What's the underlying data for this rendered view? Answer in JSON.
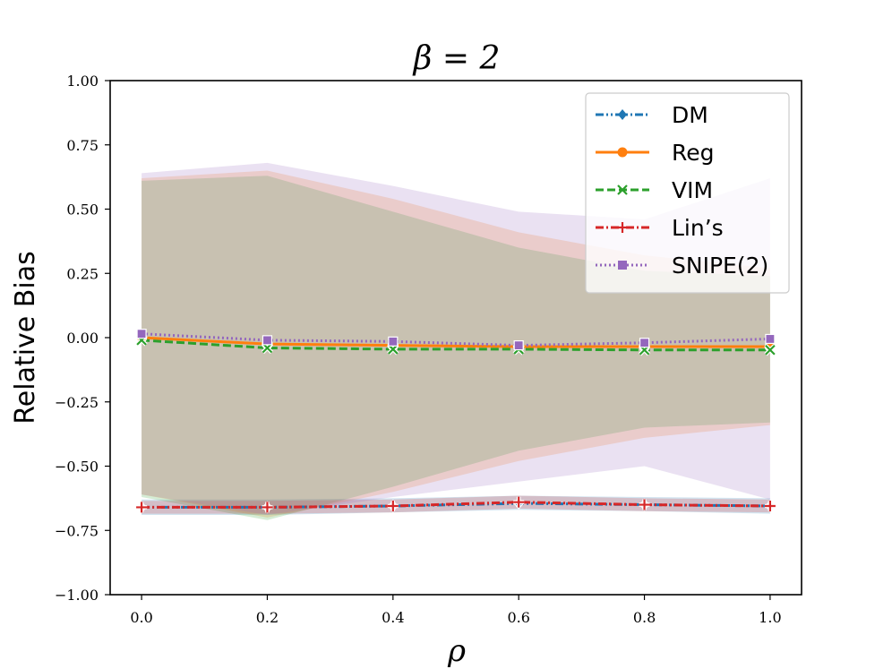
{
  "chart_data": {
    "type": "line",
    "title": "β = 2",
    "xlabel": "ρ",
    "ylabel": "Relative Bias",
    "x": [
      0.0,
      0.2,
      0.4,
      0.6,
      0.8,
      1.0
    ],
    "xlim": [
      -0.05,
      1.05
    ],
    "ylim": [
      -1.0,
      1.0
    ],
    "xticks": [
      0.0,
      0.2,
      0.4,
      0.6,
      0.8,
      1.0
    ],
    "xtick_labels": [
      "0.0",
      "0.2",
      "0.4",
      "0.6",
      "0.8",
      "1.0"
    ],
    "yticks": [
      -1.0,
      -0.75,
      -0.5,
      -0.25,
      0.0,
      0.25,
      0.5,
      0.75,
      1.0
    ],
    "ytick_labels": [
      "−1.00",
      "−0.75",
      "−0.50",
      "−0.25",
      "0.00",
      "0.25",
      "0.50",
      "0.75",
      "1.00"
    ],
    "grid": false,
    "legend_position": "top-right",
    "series": [
      {
        "name": "DM",
        "color": "#1f77b4",
        "marker": "diamond",
        "linestyle": "dashdotdot",
        "values": [
          -0.66,
          -0.66,
          -0.655,
          -0.645,
          -0.65,
          -0.655
        ],
        "band_low": [
          -0.69,
          -0.69,
          -0.68,
          -0.67,
          -0.675,
          -0.685
        ],
        "band_high": [
          -0.63,
          -0.63,
          -0.625,
          -0.615,
          -0.62,
          -0.625
        ]
      },
      {
        "name": "Reg",
        "color": "#ff7f0e",
        "marker": "circle",
        "linestyle": "solid",
        "values": [
          0.0,
          -0.025,
          -0.03,
          -0.035,
          -0.035,
          -0.035
        ],
        "band_low": [
          -0.61,
          -0.7,
          -0.6,
          -0.48,
          -0.39,
          -0.34
        ],
        "band_high": [
          0.62,
          0.65,
          0.54,
          0.41,
          0.32,
          0.27
        ]
      },
      {
        "name": "VIM",
        "color": "#2ca02c",
        "marker": "x",
        "linestyle": "dashed",
        "values": [
          -0.01,
          -0.04,
          -0.045,
          -0.045,
          -0.048,
          -0.048
        ],
        "band_low": [
          -0.62,
          -0.71,
          -0.58,
          -0.44,
          -0.35,
          -0.33
        ],
        "band_high": [
          0.61,
          0.63,
          0.49,
          0.35,
          0.26,
          0.24
        ]
      },
      {
        "name": "Lin’s",
        "color": "#d62728",
        "marker": "plus",
        "linestyle": "dashdot",
        "values": [
          -0.66,
          -0.66,
          -0.655,
          -0.64,
          -0.65,
          -0.655
        ],
        "band_low": [
          -0.685,
          -0.685,
          -0.68,
          -0.665,
          -0.675,
          -0.68
        ],
        "band_high": [
          -0.635,
          -0.635,
          -0.63,
          -0.615,
          -0.625,
          -0.63
        ]
      },
      {
        "name": "SNIPE(2)",
        "color": "#9467bd",
        "marker": "square",
        "linestyle": "dotted",
        "values": [
          0.015,
          -0.01,
          -0.015,
          -0.03,
          -0.02,
          -0.005
        ],
        "band_low": [
          -0.61,
          -0.69,
          -0.62,
          -0.56,
          -0.5,
          -0.63
        ],
        "band_high": [
          0.64,
          0.68,
          0.59,
          0.49,
          0.46,
          0.62
        ]
      }
    ]
  }
}
